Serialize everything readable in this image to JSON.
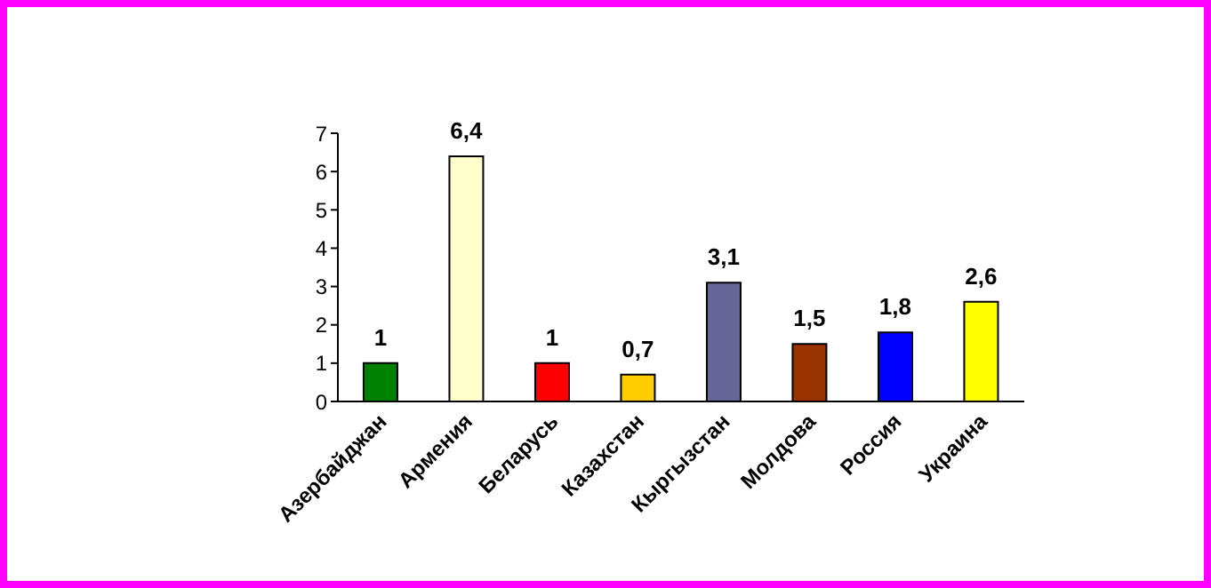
{
  "chart_data": {
    "type": "bar",
    "categories": [
      "Азербайджан",
      "Армения",
      "Беларусь",
      "Казахстан",
      "Кыргызстан",
      "Молдова",
      "Россия",
      "Украина"
    ],
    "values": [
      1,
      6.4,
      1,
      0.7,
      3.1,
      1.5,
      1.8,
      2.6
    ],
    "value_labels": [
      "1",
      "6,4",
      "1",
      "0,7",
      "3,1",
      "1,5",
      "1,8",
      "2,6"
    ],
    "colors": [
      "#008000",
      "#ffffcc",
      "#ff0000",
      "#ffcc00",
      "#666699",
      "#993300",
      "#0000ff",
      "#ffff00"
    ],
    "ylim": [
      0,
      7
    ],
    "yticks": [
      0,
      1,
      2,
      3,
      4,
      5,
      6,
      7
    ],
    "grid": false
  }
}
